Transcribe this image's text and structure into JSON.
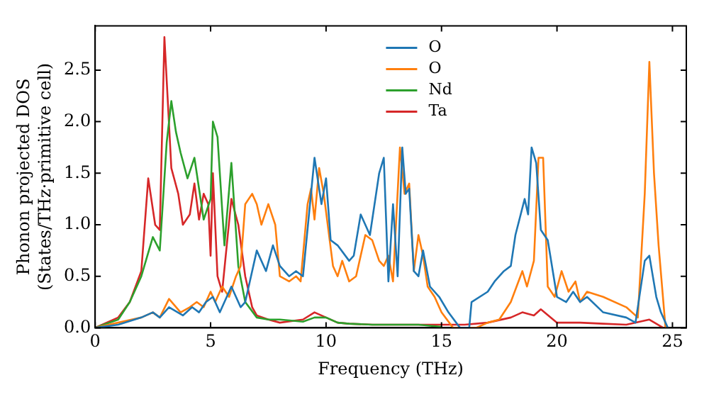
{
  "chart_data": {
    "type": "line",
    "xlabel": "Frequency (THz)",
    "ylabel": "Phonon projected DOS\n(States/THz·primitive cell)",
    "xlim": [
      0,
      25.6
    ],
    "ylim": [
      0,
      2.93
    ],
    "xticks": [
      0,
      5,
      10,
      15,
      20,
      25
    ],
    "yticks": [
      {
        "value": 0,
        "label": "0.0"
      },
      {
        "value": 0.5,
        "label": "0.5"
      },
      {
        "value": 1,
        "label": "1.0"
      },
      {
        "value": 1.5,
        "label": "1.5"
      },
      {
        "value": 2,
        "label": "2.0"
      },
      {
        "value": 2.5,
        "label": "2.5"
      }
    ],
    "grid": false,
    "legend": "top",
    "marker": "none",
    "line_style": "solid",
    "series": [
      {
        "name": "O",
        "color": "#1f77b4",
        "x": [
          0,
          1,
          2,
          2.5,
          2.8,
          3.2,
          3.8,
          4.2,
          4.5,
          4.8,
          5.1,
          5.4,
          5.9,
          6.3,
          6.5,
          6.7,
          7,
          7.4,
          7.7,
          8,
          8.4,
          8.7,
          9,
          9.5,
          9.8,
          10,
          10.2,
          10.5,
          11,
          11.2,
          11.5,
          11.9,
          12.3,
          12.5,
          12.7,
          12.9,
          13.1,
          13.3,
          13.45,
          13.6,
          13.8,
          14,
          14.2,
          14.5,
          14.9,
          15.3,
          15.8,
          16.2,
          16.3,
          17,
          17.3,
          17.7,
          18,
          18.2,
          18.6,
          18.75,
          18.9,
          19.1,
          19.3,
          19.6,
          20,
          20.4,
          20.7,
          21,
          21.3,
          22,
          23,
          23.4,
          23.8,
          24,
          24.3,
          24.5,
          24.8
        ],
        "values": [
          0,
          0.03,
          0.1,
          0.15,
          0.1,
          0.2,
          0.12,
          0.2,
          0.15,
          0.25,
          0.3,
          0.15,
          0.4,
          0.2,
          0.25,
          0.45,
          0.75,
          0.55,
          0.8,
          0.6,
          0.5,
          0.55,
          0.5,
          1.65,
          1.2,
          1.45,
          0.85,
          0.8,
          0.65,
          0.7,
          1.1,
          0.9,
          1.5,
          1.65,
          0.45,
          1.2,
          0.5,
          1.75,
          1.3,
          1.35,
          0.55,
          0.5,
          0.75,
          0.4,
          0.3,
          0.15,
          0,
          0,
          0.25,
          0.35,
          0.45,
          0.55,
          0.6,
          0.9,
          1.25,
          1.1,
          1.75,
          1.6,
          0.95,
          0.85,
          0.3,
          0.25,
          0.35,
          0.25,
          0.3,
          0.15,
          0.1,
          0.05,
          0.65,
          0.7,
          0.3,
          0.15,
          0
        ]
      },
      {
        "name": "O",
        "color": "#ff7f0e",
        "x": [
          0,
          1,
          2,
          2.5,
          2.8,
          3.2,
          3.7,
          4.1,
          4.4,
          4.7,
          5,
          5.2,
          5.5,
          5.8,
          6.1,
          6.3,
          6.5,
          6.8,
          7,
          7.2,
          7.5,
          7.8,
          8,
          8.4,
          8.7,
          8.9,
          9.2,
          9.35,
          9.5,
          9.7,
          9.9,
          10.3,
          10.5,
          10.7,
          11,
          11.3,
          11.7,
          12,
          12.3,
          12.5,
          12.7,
          12.9,
          13.2,
          13.4,
          13.6,
          13.8,
          14,
          14.2,
          14.4,
          14.7,
          15,
          15.5,
          16.5,
          17,
          17.5,
          18,
          18.5,
          18.7,
          19,
          19.2,
          19.4,
          19.6,
          19.9,
          20.2,
          20.5,
          20.8,
          21,
          21.3,
          22,
          23,
          23.5,
          23.8,
          24,
          24.2,
          24.4,
          24.7
        ],
        "values": [
          0,
          0.05,
          0.1,
          0.15,
          0.1,
          0.28,
          0.15,
          0.2,
          0.25,
          0.2,
          0.35,
          0.25,
          0.4,
          0.3,
          0.5,
          0.6,
          1.2,
          1.3,
          1.2,
          1,
          1.2,
          1,
          0.5,
          0.45,
          0.5,
          0.45,
          1.2,
          1.35,
          1.05,
          1.55,
          1.3,
          0.6,
          0.5,
          0.65,
          0.45,
          0.5,
          0.9,
          0.85,
          0.65,
          0.6,
          0.7,
          0.45,
          1.75,
          1.3,
          1.4,
          0.55,
          0.9,
          0.7,
          0.4,
          0.3,
          0.15,
          0,
          0,
          0.05,
          0.08,
          0.25,
          0.55,
          0.4,
          0.65,
          1.65,
          1.65,
          0.4,
          0.3,
          0.55,
          0.35,
          0.45,
          0.25,
          0.35,
          0.3,
          0.2,
          0.1,
          1.3,
          2.58,
          1.5,
          0.8,
          0
        ]
      },
      {
        "name": "Nd",
        "color": "#2ca02c",
        "x": [
          0,
          1,
          1.5,
          2,
          2.5,
          2.8,
          3.1,
          3.3,
          3.5,
          3.7,
          4,
          4.3,
          4.7,
          5,
          5.1,
          5.3,
          5.6,
          5.9,
          6.2,
          6.5,
          7,
          7.5,
          8,
          9,
          9.5,
          10,
          10.5,
          11,
          12,
          13,
          14,
          15
        ],
        "values": [
          0,
          0.08,
          0.25,
          0.5,
          0.88,
          0.75,
          1.8,
          2.2,
          1.9,
          1.7,
          1.45,
          1.65,
          1.05,
          1.25,
          2,
          1.85,
          0.8,
          1.6,
          0.6,
          0.25,
          0.1,
          0.08,
          0.08,
          0.06,
          0.1,
          0.1,
          0.05,
          0.04,
          0.03,
          0.03,
          0.03,
          0.01
        ]
      },
      {
        "name": "Ta",
        "color": "#d62728",
        "x": [
          0,
          1,
          1.5,
          2,
          2.3,
          2.6,
          2.8,
          3,
          3.3,
          3.6,
          3.8,
          4.1,
          4.3,
          4.5,
          4.7,
          4.9,
          5,
          5.1,
          5.3,
          5.5,
          5.9,
          6.2,
          6.5,
          6.8,
          7,
          7.5,
          8,
          9,
          9.5,
          10,
          10.5,
          11,
          12,
          13,
          14,
          15,
          16,
          17,
          18,
          18.5,
          19,
          19.3,
          20,
          21,
          22,
          23,
          24,
          24.6
        ],
        "values": [
          0,
          0.1,
          0.25,
          0.55,
          1.45,
          1,
          0.95,
          2.82,
          1.55,
          1.3,
          1,
          1.1,
          1.4,
          1.05,
          1.3,
          1.2,
          0.7,
          1.5,
          0.5,
          0.35,
          1.25,
          1,
          0.5,
          0.2,
          0.12,
          0.08,
          0.05,
          0.08,
          0.15,
          0.1,
          0.05,
          0.04,
          0.03,
          0.03,
          0.03,
          0.03,
          0.03,
          0.05,
          0.1,
          0.15,
          0.12,
          0.18,
          0.05,
          0.05,
          0.04,
          0.03,
          0.08,
          0
        ]
      }
    ]
  }
}
